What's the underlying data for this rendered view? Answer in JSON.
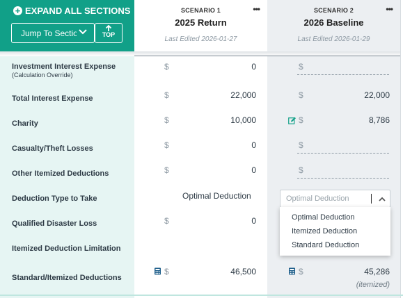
{
  "header": {
    "expand_all_label": "EXPAND ALL SECTIONS",
    "jump_to_section_label": "Jump To Sectio",
    "top_label": "TOP"
  },
  "scenarios": [
    {
      "label": "SCENARIO 1",
      "name": "2025 Return",
      "last_edited": "Last Edited 2026-01-27",
      "menu_icon": "more-dots-icon"
    },
    {
      "label": "SCENARIO 2",
      "name": "2026 Baseline",
      "last_edited": "Last Edited 2026-01-29",
      "menu_icon": "more-dots-icon"
    }
  ],
  "currency_symbol": "$",
  "rows": {
    "investment_interest": {
      "label": "Investment Interest Expense",
      "sub": "(Calculation Override)",
      "s1": "0",
      "s2": ""
    },
    "total_interest": {
      "label": "Total Interest Expense",
      "s1": "22,000",
      "s2": "22,000"
    },
    "charity": {
      "label": "Charity",
      "s1": "10,000",
      "s2": "8,786"
    },
    "casualty": {
      "label": "Casualty/Theft Losses",
      "s1": "0",
      "s2": ""
    },
    "other_itemized": {
      "label": "Other Itemized Deductions",
      "s1": "0",
      "s2": ""
    },
    "deduction_type": {
      "label": "Deduction Type to Take",
      "s1": "Optimal Deduction",
      "s2_placeholder": "Optimal Deduction"
    },
    "disaster_loss": {
      "label": "Qualified Disaster Loss",
      "s1": "0"
    },
    "itemized_limitation": {
      "label": "Itemized Deduction Limitation"
    },
    "standard_itemized": {
      "label": "Standard/Itemized Deductions",
      "s1": "46,500",
      "s2": "45,286",
      "s2_note": "(itemized)"
    }
  },
  "dropdown_options": [
    "Optimal Deduction",
    "Itemized Deduction",
    "Standard Deduction"
  ],
  "colors": {
    "brand_teal": "#11a088",
    "label_bg": "#e6f5f3",
    "scenario2_bg": "#eceff2",
    "icon_blue": "#1f5f8b"
  }
}
